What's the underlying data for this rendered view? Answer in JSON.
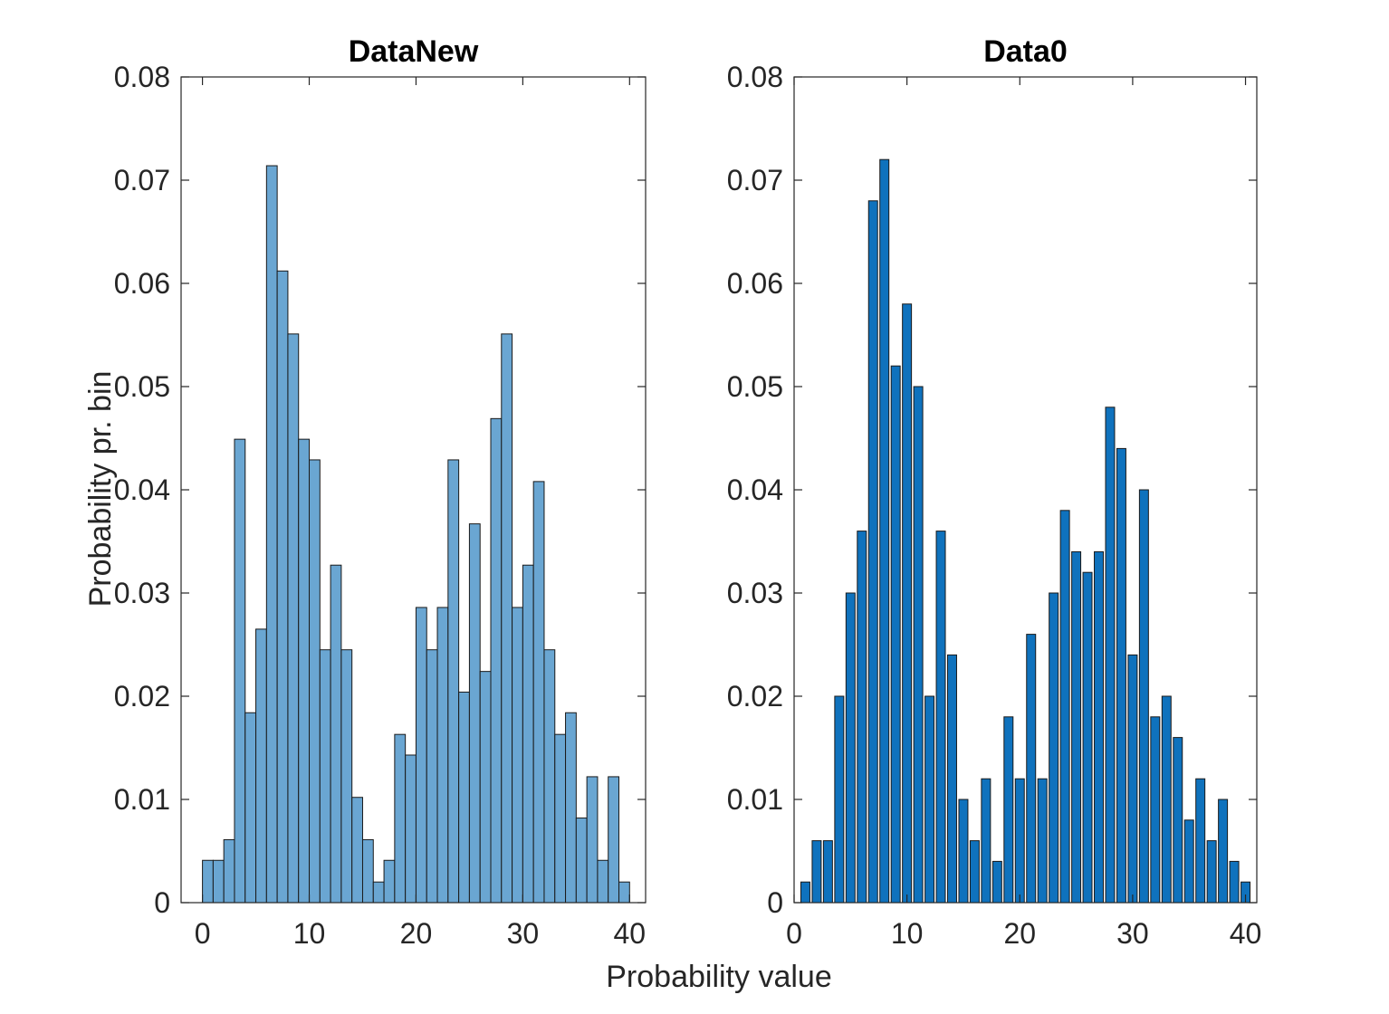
{
  "figure": {
    "xlabel": "Probability value",
    "ylabel": "Probability pr. bin"
  },
  "chart_data": [
    {
      "type": "bar",
      "title": "DataNew",
      "xlim": [
        -2,
        41.5
      ],
      "ylim": [
        0,
        0.08
      ],
      "xticks": [
        0,
        10,
        20,
        30,
        40
      ],
      "yticks": [
        0,
        0.01,
        0.02,
        0.03,
        0.04,
        0.05,
        0.06,
        0.07,
        0.08
      ],
      "ytick_labels": [
        "0",
        "0.01",
        "0.02",
        "0.03",
        "0.04",
        "0.05",
        "0.06",
        "0.07",
        "0.08"
      ],
      "bin_edges_start": 0,
      "bin_width": 1,
      "bar_style": "histogram",
      "color": "#6aa6d2",
      "edge_color": "#1a1a1a",
      "values": [
        0.0041,
        0.0041,
        0.0061,
        0.0449,
        0.0184,
        0.0265,
        0.0714,
        0.0612,
        0.0551,
        0.0449,
        0.0429,
        0.0245,
        0.0327,
        0.0245,
        0.0102,
        0.0061,
        0.002,
        0.0041,
        0.0163,
        0.0143,
        0.0286,
        0.0245,
        0.0286,
        0.0429,
        0.0204,
        0.0367,
        0.0224,
        0.0469,
        0.0551,
        0.0286,
        0.0327,
        0.0408,
        0.0245,
        0.0163,
        0.0184,
        0.0082,
        0.0122,
        0.0041,
        0.0122,
        0.002
      ]
    },
    {
      "type": "bar",
      "title": "Data0",
      "xlim": [
        0,
        41
      ],
      "ylim": [
        0,
        0.08
      ],
      "xticks": [
        0,
        10,
        20,
        30,
        40
      ],
      "yticks": [
        0,
        0.01,
        0.02,
        0.03,
        0.04,
        0.05,
        0.06,
        0.07,
        0.08
      ],
      "ytick_labels": [
        "0",
        "0.01",
        "0.02",
        "0.03",
        "0.04",
        "0.05",
        "0.06",
        "0.07",
        "0.08"
      ],
      "x": [
        1,
        2,
        3,
        4,
        5,
        6,
        7,
        8,
        9,
        10,
        11,
        12,
        13,
        14,
        15,
        16,
        17,
        18,
        19,
        20,
        21,
        22,
        23,
        24,
        25,
        26,
        27,
        28,
        29,
        30,
        31,
        32,
        33,
        34,
        35,
        36,
        37,
        38,
        39,
        40
      ],
      "bar_style": "separated",
      "color": "#0f72bd",
      "edge_color": "#1a1a1a",
      "values": [
        0.002,
        0.006,
        0.006,
        0.02,
        0.03,
        0.036,
        0.068,
        0.072,
        0.052,
        0.058,
        0.05,
        0.02,
        0.036,
        0.024,
        0.01,
        0.006,
        0.012,
        0.004,
        0.018,
        0.012,
        0.026,
        0.012,
        0.03,
        0.038,
        0.034,
        0.032,
        0.034,
        0.048,
        0.044,
        0.024,
        0.04,
        0.018,
        0.02,
        0.016,
        0.008,
        0.012,
        0.006,
        0.01,
        0.004,
        0.002
      ]
    }
  ]
}
